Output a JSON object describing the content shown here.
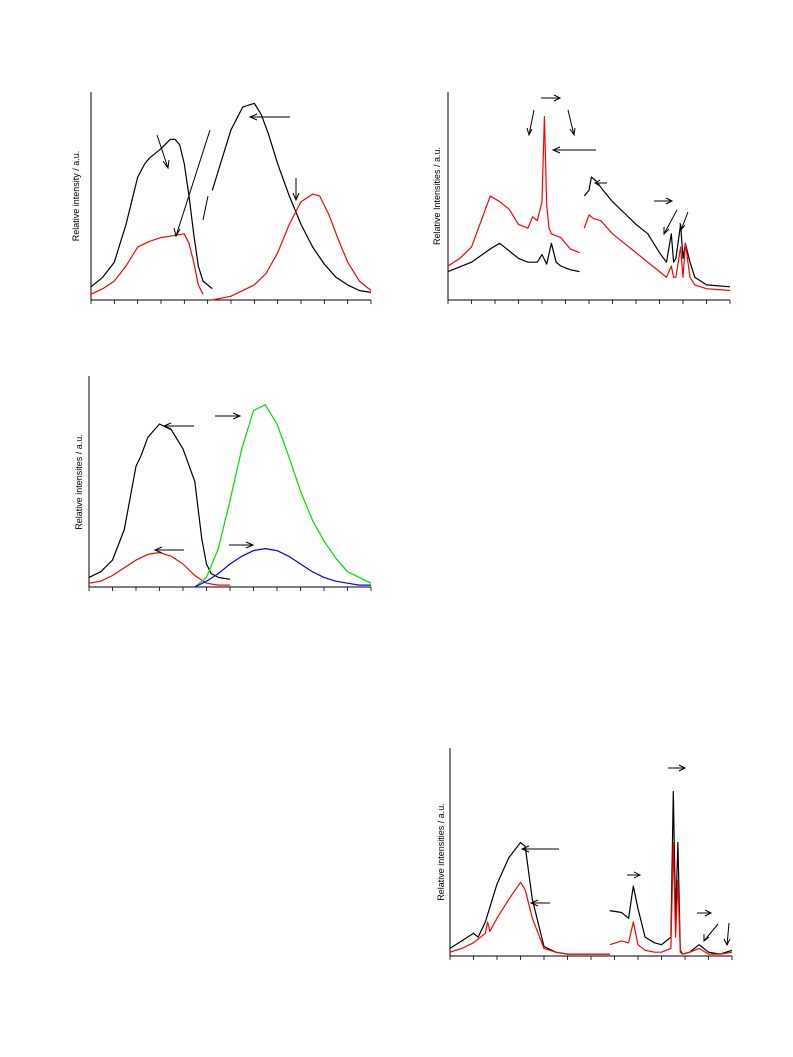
{
  "colors": {
    "black": "#000000",
    "red": "#ff0000",
    "green": "#00dd00",
    "blue": "#0000ff"
  },
  "panels": [
    {
      "id": "a",
      "ylabel": "Relative intensity / a.u."
    },
    {
      "id": "b",
      "ylabel": "Relative Intensities / a.u."
    },
    {
      "id": "c",
      "ylabel": "Relative intensites / a.u."
    },
    {
      "id": "d",
      "ylabel": "Relative intensities / a.u."
    }
  ],
  "chart_data": [
    {
      "type": "line",
      "ylabel": "Relative intensity / a.u.",
      "xlim": [
        0,
        12
      ],
      "ylim": [
        0,
        1.1
      ],
      "grid": false,
      "legend": "none",
      "series": [
        {
          "color": "black",
          "x": [
            0,
            0.5,
            1,
            1.5,
            2,
            2.3,
            2.5,
            3,
            3.4,
            3.6,
            3.8,
            4,
            4.2,
            4.4,
            4.6,
            4.8,
            5,
            5.2
          ],
          "y": [
            0.07,
            0.12,
            0.2,
            0.4,
            0.65,
            0.72,
            0.75,
            0.8,
            0.85,
            0.85,
            0.82,
            0.72,
            0.55,
            0.35,
            0.18,
            0.1,
            0.08,
            0.06
          ]
        },
        {
          "color": "red",
          "x": [
            0,
            0.5,
            1,
            1.5,
            2,
            2.5,
            3,
            3.5,
            4,
            4.2,
            4.4,
            4.6,
            4.8
          ],
          "y": [
            0.03,
            0.06,
            0.1,
            0.18,
            0.28,
            0.31,
            0.33,
            0.34,
            0.35,
            0.3,
            0.2,
            0.08,
            0.03
          ]
        },
        {
          "color": "black",
          "x": [
            5.2,
            5.5,
            6,
            6.5,
            7,
            7.3,
            7.6,
            8,
            8.5,
            9,
            9.5,
            10,
            10.5,
            11,
            11.5,
            12
          ],
          "y": [
            0.58,
            0.7,
            0.9,
            1.02,
            1.04,
            0.98,
            0.88,
            0.72,
            0.55,
            0.4,
            0.28,
            0.19,
            0.12,
            0.08,
            0.05,
            0.04
          ]
        },
        {
          "color": "red",
          "x": [
            5.2,
            6,
            7,
            7.5,
            8,
            8.5,
            9,
            9.5,
            9.8,
            10.2,
            10.6,
            11,
            11.5,
            12
          ],
          "y": [
            0.0,
            0.02,
            0.08,
            0.14,
            0.25,
            0.4,
            0.52,
            0.56,
            0.55,
            0.45,
            0.32,
            0.2,
            0.1,
            0.05
          ]
        }
      ]
    },
    {
      "type": "line",
      "ylabel": "Relative Intensities / a.u.",
      "xlim": [
        0,
        12
      ],
      "ylim": [
        0,
        1.1
      ],
      "grid": false,
      "legend": "none",
      "series": [
        {
          "color": "black",
          "x": [
            0,
            1,
            1.8,
            2.2,
            2.6,
            3,
            3.4,
            3.8,
            4,
            4.2,
            4.4,
            4.6,
            4.8,
            5.0,
            5.2,
            5.6
          ],
          "y": [
            0.15,
            0.2,
            0.27,
            0.3,
            0.26,
            0.22,
            0.2,
            0.2,
            0.24,
            0.19,
            0.3,
            0.2,
            0.18,
            0.17,
            0.16,
            0.15
          ]
        },
        {
          "color": "red",
          "x": [
            0,
            0.5,
            1,
            1.5,
            1.8,
            2.2,
            2.6,
            3,
            3.4,
            3.6,
            3.8,
            4.0,
            4.1,
            4.2,
            4.3,
            4.4,
            4.6,
            4.8,
            5,
            5.2,
            5.6
          ],
          "y": [
            0.18,
            0.22,
            0.28,
            0.45,
            0.55,
            0.52,
            0.48,
            0.4,
            0.38,
            0.44,
            0.42,
            0.52,
            0.97,
            0.5,
            0.38,
            0.35,
            0.34,
            0.33,
            0.3,
            0.27,
            0.25
          ]
        },
        {
          "color": "black",
          "x": [
            5.8,
            6.0,
            6.1,
            6.3,
            6.6,
            7,
            7.5,
            8,
            8.5,
            9,
            9.3,
            9.5,
            9.6,
            9.7,
            9.9,
            10,
            10.1,
            10.3,
            10.5,
            11,
            12
          ],
          "y": [
            0.55,
            0.58,
            0.65,
            0.63,
            0.58,
            0.52,
            0.46,
            0.4,
            0.35,
            0.25,
            0.2,
            0.35,
            0.2,
            0.22,
            0.4,
            0.22,
            0.3,
            0.2,
            0.12,
            0.08,
            0.07
          ]
        },
        {
          "color": "red",
          "x": [
            5.8,
            6.0,
            6.2,
            6.5,
            7,
            7.5,
            8,
            8.5,
            9,
            9.3,
            9.5,
            9.6,
            9.7,
            9.9,
            10,
            10.1,
            10.3,
            10.5,
            11,
            12
          ],
          "y": [
            0.38,
            0.45,
            0.43,
            0.42,
            0.35,
            0.3,
            0.25,
            0.2,
            0.15,
            0.12,
            0.18,
            0.12,
            0.12,
            0.28,
            0.12,
            0.3,
            0.12,
            0.08,
            0.06,
            0.05
          ]
        }
      ]
    },
    {
      "type": "line",
      "ylabel": "Relative intensites / a.u.",
      "xlim": [
        0,
        12
      ],
      "ylim": [
        0,
        1.1
      ],
      "grid": false,
      "legend": "none",
      "series": [
        {
          "color": "black",
          "x": [
            0,
            0.5,
            1,
            1.5,
            2,
            2.2,
            2.5,
            3,
            3.5,
            4,
            4.5,
            4.8,
            5,
            5.2,
            5.5,
            6
          ],
          "y": [
            0.05,
            0.08,
            0.14,
            0.3,
            0.63,
            0.68,
            0.78,
            0.85,
            0.82,
            0.72,
            0.55,
            0.25,
            0.12,
            0.07,
            0.05,
            0.04
          ]
        },
        {
          "color": "red",
          "x": [
            0,
            0.5,
            1,
            1.5,
            2,
            2.5,
            3,
            3.5,
            4,
            4.5,
            5,
            5.5,
            6
          ],
          "y": [
            0.02,
            0.03,
            0.06,
            0.1,
            0.14,
            0.17,
            0.18,
            0.16,
            0.12,
            0.06,
            0.02,
            0.01,
            0.01
          ]
        },
        {
          "color": "green",
          "x": [
            4.5,
            5,
            5.5,
            6,
            6.5,
            7,
            7.5,
            8,
            8.5,
            9,
            9.5,
            10,
            10.5,
            11,
            11.5,
            12
          ],
          "y": [
            0.0,
            0.05,
            0.2,
            0.45,
            0.72,
            0.92,
            0.95,
            0.85,
            0.68,
            0.5,
            0.35,
            0.24,
            0.15,
            0.08,
            0.05,
            0.02
          ]
        },
        {
          "color": "blue",
          "x": [
            4.5,
            5,
            5.5,
            6,
            6.5,
            7,
            7.5,
            8,
            8.5,
            9,
            9.5,
            10,
            10.5,
            11,
            11.5,
            12
          ],
          "y": [
            0.0,
            0.03,
            0.07,
            0.12,
            0.16,
            0.19,
            0.2,
            0.19,
            0.16,
            0.12,
            0.08,
            0.05,
            0.03,
            0.02,
            0.01,
            0.01
          ]
        }
      ]
    },
    {
      "type": "line",
      "ylabel": "Relative intensities / a.u.",
      "xlim": [
        0,
        12
      ],
      "ylim": [
        0,
        1.1
      ],
      "grid": false,
      "legend": "none",
      "series": [
        {
          "color": "black",
          "x": [
            0,
            0.5,
            1,
            1.2,
            1.5,
            1.8,
            2,
            2.5,
            3,
            3.2,
            3.5,
            4,
            4.5,
            5,
            5.5,
            6,
            6.8
          ],
          "y": [
            0.04,
            0.08,
            0.12,
            0.1,
            0.18,
            0.3,
            0.38,
            0.52,
            0.6,
            0.58,
            0.3,
            0.05,
            0.02,
            0.01,
            0.01,
            0.01,
            0.01
          ]
        },
        {
          "color": "red",
          "x": [
            0,
            0.5,
            1,
            1.5,
            1.6,
            1.7,
            2,
            2.5,
            3,
            3.2,
            3.5,
            4,
            4.5,
            5,
            5.5,
            6,
            6.8
          ],
          "y": [
            0.02,
            0.04,
            0.07,
            0.12,
            0.18,
            0.13,
            0.2,
            0.3,
            0.39,
            0.35,
            0.2,
            0.04,
            0.02,
            0.01,
            0.01,
            0.01,
            0.01
          ]
        },
        {
          "color": "black",
          "x": [
            6.8,
            7.3,
            7.6,
            7.8,
            8,
            8.3,
            8.7,
            9,
            9.4,
            9.5,
            9.6,
            9.7,
            9.8,
            9.9,
            10.2,
            10.6,
            11,
            11.5,
            12
          ],
          "y": [
            0.24,
            0.23,
            0.2,
            0.37,
            0.25,
            0.1,
            0.07,
            0.06,
            0.1,
            0.87,
            0.2,
            0.6,
            0.03,
            0.01,
            0.02,
            0.06,
            0.02,
            0.01,
            0.03
          ]
        },
        {
          "color": "red",
          "x": [
            6.8,
            7.3,
            7.6,
            7.8,
            8,
            8.3,
            8.7,
            9,
            9.4,
            9.5,
            9.6,
            9.7,
            9.8,
            9.9,
            10.2,
            10.6,
            11,
            11.5,
            12
          ],
          "y": [
            0.06,
            0.08,
            0.07,
            0.18,
            0.06,
            0.03,
            0.02,
            0.02,
            0.04,
            0.6,
            0.1,
            0.4,
            0.02,
            0.01,
            0.02,
            0.04,
            0.01,
            0.01,
            0.02
          ]
        }
      ]
    }
  ]
}
